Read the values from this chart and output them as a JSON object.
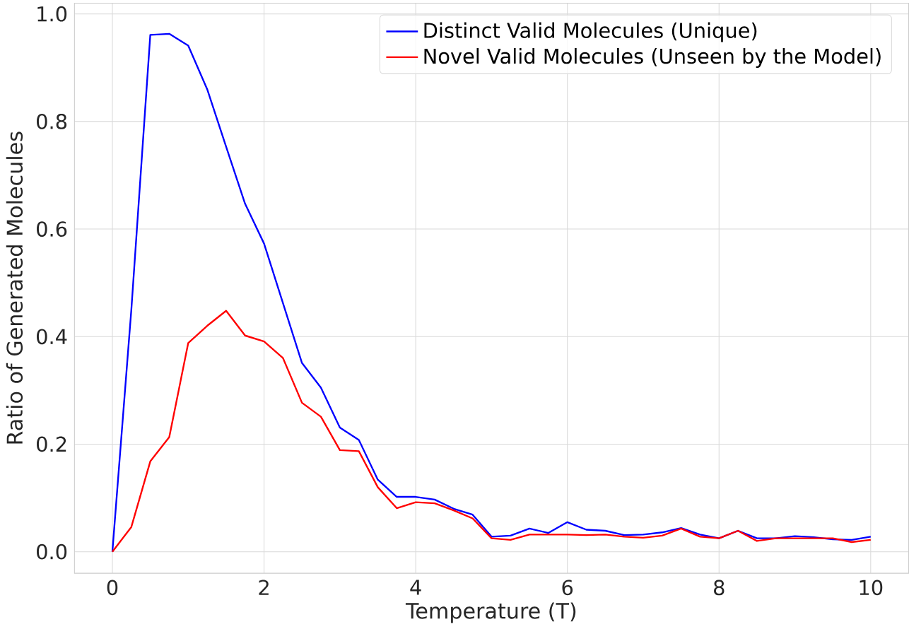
{
  "chart_data": {
    "type": "line",
    "xlabel": "Temperature (T)",
    "ylabel": "Ratio of Generated Molecules",
    "x": [
      0,
      0.25,
      0.5,
      0.75,
      1,
      1.25,
      1.5,
      1.75,
      2,
      2.25,
      2.5,
      2.75,
      3,
      3.25,
      3.5,
      3.75,
      4,
      4.25,
      4.5,
      4.75,
      5,
      5.25,
      5.5,
      5.75,
      6,
      6.25,
      6.5,
      6.75,
      7,
      7.25,
      7.5,
      7.75,
      8,
      8.25,
      8.5,
      8.75,
      9,
      9.25,
      9.5,
      9.75,
      10
    ],
    "series": [
      {
        "name": "Distinct Valid Molecules (Unique)",
        "color": "#0000ff",
        "values": [
          0,
          0.45,
          0.961,
          0.963,
          0.941,
          0.86,
          0.753,
          0.647,
          0.573,
          0.462,
          0.351,
          0.305,
          0.231,
          0.208,
          0.134,
          0.102,
          0.102,
          0.097,
          0.08,
          0.069,
          0.028,
          0.03,
          0.043,
          0.035,
          0.055,
          0.041,
          0.039,
          0.031,
          0.032,
          0.036,
          0.044,
          0.032,
          0.025,
          0.039,
          0.025,
          0.025,
          0.029,
          0.027,
          0.023,
          0.022,
          0.028
        ]
      },
      {
        "name": "Novel Valid Molecules (Unseen by the Model)",
        "color": "#ff0000",
        "values": [
          0,
          0.046,
          0.168,
          0.213,
          0.388,
          0.42,
          0.448,
          0.402,
          0.391,
          0.36,
          0.277,
          0.251,
          0.189,
          0.187,
          0.12,
          0.081,
          0.092,
          0.09,
          0.077,
          0.062,
          0.025,
          0.022,
          0.032,
          0.032,
          0.032,
          0.031,
          0.032,
          0.028,
          0.026,
          0.03,
          0.043,
          0.028,
          0.025,
          0.039,
          0.02,
          0.025,
          0.025,
          0.025,
          0.025,
          0.018,
          0.022
        ]
      }
    ],
    "xlim": [
      -0.5,
      10.5
    ],
    "ylim": [
      -0.04,
      1.02
    ],
    "xticks": [
      0,
      2,
      4,
      6,
      8,
      10
    ],
    "yticks": [
      {
        "value": 0,
        "label": "0.0"
      },
      {
        "value": 0.2,
        "label": "0.2"
      },
      {
        "value": 0.4,
        "label": "0.4"
      },
      {
        "value": 0.6,
        "label": "0.6"
      },
      {
        "value": 0.8,
        "label": "0.8"
      },
      {
        "value": 1,
        "label": "1.0"
      }
    ],
    "grid": true,
    "legend": "top right",
    "marker": "none",
    "line_style": "solid"
  }
}
